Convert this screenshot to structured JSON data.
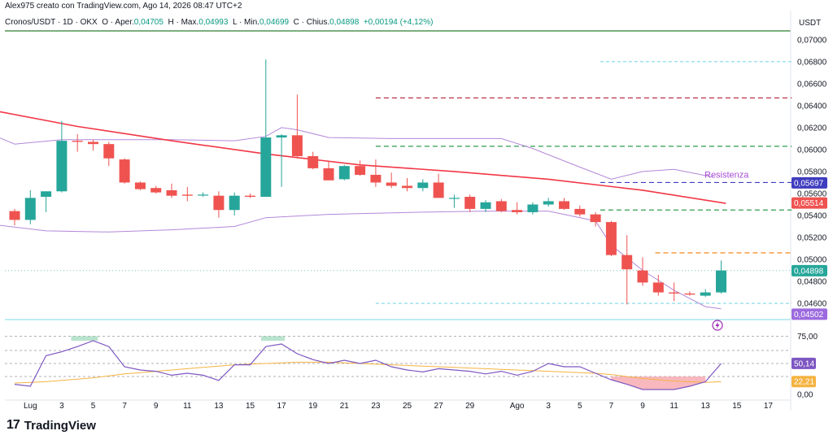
{
  "header": {
    "text": "Alex975 creato con TradingView.com, Ago 14, 2026 08:47 UTC+2"
  },
  "legend": {
    "symbol": "Cronos/USDT · 1D · OKX",
    "open_label": "O · Aper.",
    "open": "0,04705",
    "high_label": "H · Max.",
    "high": "0,04993",
    "low_label": "L · Min.",
    "low": "0,04699",
    "close_label": "C · Chius.",
    "close": "0,04898",
    "change": "+0,00194 (+4,12%)"
  },
  "currency": "USDT",
  "logo": {
    "mark": "17",
    "text": "TradingView"
  },
  "colors": {
    "up": "#26a69a",
    "down": "#ef5350",
    "ma": "#f23645",
    "bb": "#b388d9",
    "rsi": "#7e57c2",
    "rsi_ma": "#f5b342"
  },
  "chart_data": {
    "type": "candlestick",
    "title": "",
    "ylim": [
      0.0446,
      0.0708
    ],
    "yticks": [
      "0,07000",
      "0,06800",
      "0,06600",
      "0,06400",
      "0,06200",
      "0,06000",
      "0,05800",
      "0,05600",
      "0,05400",
      "0,05200",
      "0,05000",
      "0,04800",
      "0,04600"
    ],
    "xticks": [
      {
        "day": 1,
        "label": "Lug"
      },
      {
        "day": 3,
        "label": "3"
      },
      {
        "day": 5,
        "label": "5"
      },
      {
        "day": 7,
        "label": "7"
      },
      {
        "day": 9,
        "label": "9"
      },
      {
        "day": 11,
        "label": "11"
      },
      {
        "day": 13,
        "label": "13"
      },
      {
        "day": 15,
        "label": "15"
      },
      {
        "day": 17,
        "label": "17"
      },
      {
        "day": 19,
        "label": "19"
      },
      {
        "day": 21,
        "label": "21"
      },
      {
        "day": 23,
        "label": "23"
      },
      {
        "day": 25,
        "label": "25"
      },
      {
        "day": 27,
        "label": "27"
      },
      {
        "day": 29,
        "label": "29"
      },
      {
        "day": 32,
        "label": "Ago"
      },
      {
        "day": 34,
        "label": "3"
      },
      {
        "day": 36,
        "label": "5"
      },
      {
        "day": 38,
        "label": "7"
      },
      {
        "day": 40,
        "label": "9"
      },
      {
        "day": 42,
        "label": "11"
      },
      {
        "day": 44,
        "label": "13"
      },
      {
        "day": 46,
        "label": "15"
      },
      {
        "day": 48,
        "label": "17"
      }
    ],
    "candles": [
      {
        "d": 0,
        "o": 0.0544,
        "h": 0.0546,
        "l": 0.0531,
        "c": 0.0536
      },
      {
        "d": 1,
        "o": 0.0536,
        "h": 0.0563,
        "l": 0.0532,
        "c": 0.0556
      },
      {
        "d": 2,
        "o": 0.0557,
        "h": 0.0562,
        "l": 0.0543,
        "c": 0.0562
      },
      {
        "d": 3,
        "o": 0.0562,
        "h": 0.0626,
        "l": 0.0561,
        "c": 0.0608
      },
      {
        "d": 4,
        "o": 0.0608,
        "h": 0.0614,
        "l": 0.0598,
        "c": 0.0607
      },
      {
        "d": 5,
        "o": 0.0607,
        "h": 0.0609,
        "l": 0.0599,
        "c": 0.0605
      },
      {
        "d": 6,
        "o": 0.0605,
        "h": 0.0607,
        "l": 0.0585,
        "c": 0.0592
      },
      {
        "d": 7,
        "o": 0.0591,
        "h": 0.0592,
        "l": 0.0569,
        "c": 0.057
      },
      {
        "d": 8,
        "o": 0.057,
        "h": 0.0571,
        "l": 0.0563,
        "c": 0.0564
      },
      {
        "d": 9,
        "o": 0.0565,
        "h": 0.0567,
        "l": 0.056,
        "c": 0.0561
      },
      {
        "d": 10,
        "o": 0.0563,
        "h": 0.0569,
        "l": 0.0556,
        "c": 0.0558
      },
      {
        "d": 11,
        "o": 0.0559,
        "h": 0.0566,
        "l": 0.0553,
        "c": 0.0558
      },
      {
        "d": 12,
        "o": 0.0559,
        "h": 0.0561,
        "l": 0.0557,
        "c": 0.0559
      },
      {
        "d": 13,
        "o": 0.0558,
        "h": 0.0562,
        "l": 0.0538,
        "c": 0.0545
      },
      {
        "d": 14,
        "o": 0.0545,
        "h": 0.0561,
        "l": 0.054,
        "c": 0.0558
      },
      {
        "d": 15,
        "o": 0.0558,
        "h": 0.056,
        "l": 0.0556,
        "c": 0.0557
      },
      {
        "d": 16,
        "o": 0.0557,
        "h": 0.0682,
        "l": 0.0557,
        "c": 0.0611
      },
      {
        "d": 17,
        "o": 0.0611,
        "h": 0.0614,
        "l": 0.0566,
        "c": 0.0613
      },
      {
        "d": 18,
        "o": 0.0613,
        "h": 0.065,
        "l": 0.0592,
        "c": 0.0594
      },
      {
        "d": 19,
        "o": 0.0594,
        "h": 0.0598,
        "l": 0.0582,
        "c": 0.0583
      },
      {
        "d": 20,
        "o": 0.0583,
        "h": 0.059,
        "l": 0.0572,
        "c": 0.0572
      },
      {
        "d": 21,
        "o": 0.0573,
        "h": 0.0586,
        "l": 0.0572,
        "c": 0.0585
      },
      {
        "d": 22,
        "o": 0.0585,
        "h": 0.059,
        "l": 0.0576,
        "c": 0.0577
      },
      {
        "d": 23,
        "o": 0.0577,
        "h": 0.0591,
        "l": 0.0566,
        "c": 0.057
      },
      {
        "d": 24,
        "o": 0.057,
        "h": 0.0579,
        "l": 0.0565,
        "c": 0.0567
      },
      {
        "d": 25,
        "o": 0.0567,
        "h": 0.0574,
        "l": 0.0562,
        "c": 0.0565
      },
      {
        "d": 26,
        "o": 0.0565,
        "h": 0.0573,
        "l": 0.0562,
        "c": 0.057
      },
      {
        "d": 27,
        "o": 0.057,
        "h": 0.0578,
        "l": 0.0556,
        "c": 0.0556
      },
      {
        "d": 28,
        "o": 0.0556,
        "h": 0.0559,
        "l": 0.0547,
        "c": 0.0556
      },
      {
        "d": 29,
        "o": 0.0557,
        "h": 0.0559,
        "l": 0.0543,
        "c": 0.0546
      },
      {
        "d": 30,
        "o": 0.0546,
        "h": 0.0554,
        "l": 0.0543,
        "c": 0.0552
      },
      {
        "d": 31,
        "o": 0.0553,
        "h": 0.0555,
        "l": 0.0543,
        "c": 0.0544
      },
      {
        "d": 32,
        "o": 0.0545,
        "h": 0.0552,
        "l": 0.0541,
        "c": 0.0543
      },
      {
        "d": 33,
        "o": 0.0543,
        "h": 0.0552,
        "l": 0.0541,
        "c": 0.055
      },
      {
        "d": 34,
        "o": 0.055,
        "h": 0.0556,
        "l": 0.0548,
        "c": 0.0553
      },
      {
        "d": 35,
        "o": 0.0553,
        "h": 0.0556,
        "l": 0.0545,
        "c": 0.0546
      },
      {
        "d": 36,
        "o": 0.0546,
        "h": 0.0549,
        "l": 0.0539,
        "c": 0.0541
      },
      {
        "d": 37,
        "o": 0.0541,
        "h": 0.0543,
        "l": 0.053,
        "c": 0.0534
      },
      {
        "d": 38,
        "o": 0.0534,
        "h": 0.0535,
        "l": 0.0503,
        "c": 0.0504
      },
      {
        "d": 39,
        "o": 0.0504,
        "h": 0.0522,
        "l": 0.0459,
        "c": 0.0491
      },
      {
        "d": 40,
        "o": 0.049,
        "h": 0.0502,
        "l": 0.0476,
        "c": 0.0479
      },
      {
        "d": 41,
        "o": 0.0479,
        "h": 0.0486,
        "l": 0.0467,
        "c": 0.047
      },
      {
        "d": 42,
        "o": 0.047,
        "h": 0.0479,
        "l": 0.0462,
        "c": 0.0469
      },
      {
        "d": 43,
        "o": 0.0469,
        "h": 0.0471,
        "l": 0.0467,
        "c": 0.0468
      },
      {
        "d": 44,
        "o": 0.0467,
        "h": 0.0473,
        "l": 0.0466,
        "c": 0.047
      },
      {
        "d": 45,
        "o": 0.047,
        "h": 0.0499,
        "l": 0.0469,
        "c": 0.049
      }
    ],
    "ma": [
      {
        "d": -1.5,
        "v": 0.0636
      },
      {
        "d": 4,
        "v": 0.0621
      },
      {
        "d": 10,
        "v": 0.0608
      },
      {
        "d": 16,
        "v": 0.0596
      },
      {
        "d": 22,
        "v": 0.0586
      },
      {
        "d": 28,
        "v": 0.058
      },
      {
        "d": 34,
        "v": 0.0573
      },
      {
        "d": 40,
        "v": 0.0563
      },
      {
        "d": 45.3,
        "v": 0.0551
      }
    ],
    "bb_upper": [
      {
        "d": -1.5,
        "v": 0.0614
      },
      {
        "d": 0,
        "v": 0.0605
      },
      {
        "d": 3,
        "v": 0.0609
      },
      {
        "d": 6,
        "v": 0.0609
      },
      {
        "d": 10,
        "v": 0.0609
      },
      {
        "d": 14,
        "v": 0.0608
      },
      {
        "d": 16,
        "v": 0.0612
      },
      {
        "d": 17,
        "v": 0.062
      },
      {
        "d": 18,
        "v": 0.0618
      },
      {
        "d": 20,
        "v": 0.0611
      },
      {
        "d": 24,
        "v": 0.061
      },
      {
        "d": 28,
        "v": 0.061
      },
      {
        "d": 31,
        "v": 0.061
      },
      {
        "d": 33,
        "v": 0.0601
      },
      {
        "d": 36,
        "v": 0.0584
      },
      {
        "d": 38,
        "v": 0.0573
      },
      {
        "d": 40,
        "v": 0.058
      },
      {
        "d": 42,
        "v": 0.0582
      },
      {
        "d": 44.5,
        "v": 0.0575
      }
    ],
    "bb_lower": [
      {
        "d": -1.5,
        "v": 0.0532
      },
      {
        "d": 2,
        "v": 0.0526
      },
      {
        "d": 6,
        "v": 0.0525
      },
      {
        "d": 10,
        "v": 0.0527
      },
      {
        "d": 14,
        "v": 0.053
      },
      {
        "d": 16,
        "v": 0.0538
      },
      {
        "d": 20,
        "v": 0.0541
      },
      {
        "d": 26,
        "v": 0.0543
      },
      {
        "d": 30,
        "v": 0.0544
      },
      {
        "d": 34,
        "v": 0.0544
      },
      {
        "d": 37,
        "v": 0.0535
      },
      {
        "d": 38,
        "v": 0.0513
      },
      {
        "d": 40,
        "v": 0.049
      },
      {
        "d": 42,
        "v": 0.0472
      },
      {
        "d": 44,
        "v": 0.0457
      },
      {
        "d": 45,
        "v": 0.0455
      }
    ],
    "levels": [
      {
        "v": 0.068,
        "color": "#7fd8e6",
        "dash": "4 3",
        "from": 37.3,
        "to": 49.5
      },
      {
        "v": 0.0647,
        "color": "#b22234",
        "dash": "6 4",
        "from": 23,
        "to": 49.5
      },
      {
        "v": 0.0603,
        "color": "#2e9b4f",
        "dash": "6 4",
        "from": 23,
        "to": 49.5
      },
      {
        "v": 0.057,
        "color": "#3f3cbf",
        "dash": "6 4",
        "from": 37.3,
        "to": 49.5
      },
      {
        "v": 0.0545,
        "color": "#2e9b4f",
        "dash": "6 4",
        "from": 37.3,
        "to": 49.5
      },
      {
        "v": 0.0506,
        "color": "#f57c00",
        "dash": "6 4",
        "from": 40.8,
        "to": 49.5
      },
      {
        "v": 0.046,
        "color": "#7fd8e6",
        "dash": "4 3",
        "from": 23,
        "to": 49.5
      }
    ],
    "resistance_label": "Resistenza",
    "price_tags": [
      {
        "v": 0.05697,
        "label": "0,05697",
        "bg": "#3f3cbf"
      },
      {
        "v": 0.05514,
        "label": "0,05514",
        "bg": "#ef5350"
      },
      {
        "v": 0.04898,
        "label": "0,04898",
        "bg": "#26a69a"
      },
      {
        "v": 0.04502,
        "label": "0,04502",
        "bg": "#9c6ade"
      }
    ],
    "rsi": {
      "ylim": [
        0,
        100
      ],
      "yticks": [
        "75,00",
        "0,00"
      ],
      "tags": [
        {
          "v": 50.14,
          "label": "50,14",
          "bg": "#7e57c2"
        },
        {
          "v": 22.21,
          "label": "22,21",
          "bg": "#f5b342"
        }
      ],
      "values": [
        18,
        15,
        62,
        68,
        76,
        85,
        76,
        45,
        40,
        38,
        32,
        35,
        32,
        24,
        48,
        48,
        76,
        80,
        65,
        56,
        50,
        55,
        50,
        55,
        45,
        40,
        37,
        42,
        40,
        38,
        34,
        38,
        32,
        38,
        50,
        45,
        45,
        35,
        25,
        18,
        10,
        10,
        10,
        15,
        22,
        50
      ],
      "ma": [
        20,
        21,
        22,
        24,
        26,
        28,
        31,
        34,
        36,
        38,
        40,
        42,
        44,
        46,
        48,
        49,
        50,
        51,
        52,
        52,
        52,
        51,
        50,
        49,
        48,
        47,
        46,
        45,
        44,
        43,
        42,
        41,
        40,
        39,
        38,
        37,
        36,
        35,
        33,
        30,
        27,
        25,
        23,
        22,
        21,
        22
      ]
    }
  }
}
